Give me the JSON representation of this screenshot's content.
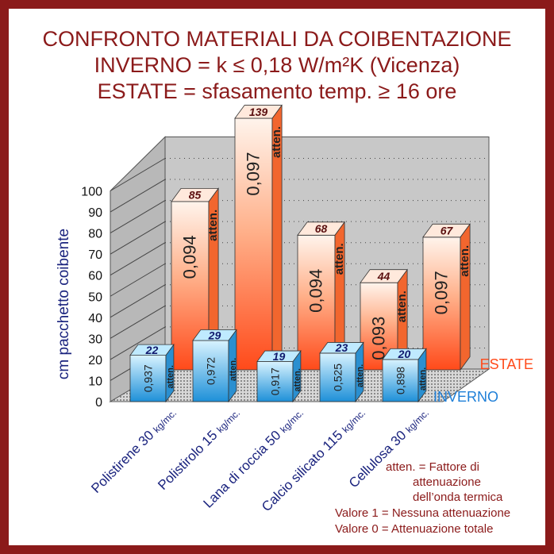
{
  "title_lines": [
    "CONFRONTO MATERIALI DA COIBENTAZIONE",
    "INVERNO = k ≤ 0,18 W/m²K (Vicenza)",
    "ESTATE = sfasamento temp. ≥ 16 ore"
  ],
  "notes": [
    "atten. = Fattore di",
    "attenuazione",
    "dell’onda termica",
    "Valore 1 = Nessuna attenuazione",
    "Valore 0 = Attenuazione totale"
  ],
  "colors": {
    "border": "#8b1a1a",
    "estate": "#ff5a2a",
    "inverno": "#1e90d8",
    "title": "#8b1a1a",
    "axis_label": "#1a237e"
  },
  "chart_data": {
    "type": "bar",
    "ylabel": "cm pacchetto coibente",
    "ylim": [
      0,
      100
    ],
    "yticks": [
      "0",
      "10",
      "20",
      "30",
      "40",
      "50",
      "60",
      "70",
      "80",
      "90",
      "100"
    ],
    "categories": [
      "Polistirene 30 kg/mc.",
      "Polistirolo 15 kg/mc.",
      "Lana di roccia 50 kg/mc.",
      "Calcio silicato 115 kg/mc.",
      "Cellulosa 30 kg/mc."
    ],
    "category_parts": [
      {
        "main": "Polistirene 30 ",
        "sub": "kg/mc."
      },
      {
        "main": "Polistirolo 15 ",
        "sub": "kg/mc."
      },
      {
        "main": "Lana di roccia 50 ",
        "sub": "kg/mc."
      },
      {
        "main": "Calcio silicato 115 ",
        "sub": "kg/mc."
      },
      {
        "main": "Cellulosa 30 ",
        "sub": "kg/mc."
      }
    ],
    "atten_label": "atten.",
    "series": [
      {
        "name": "ESTATE",
        "values": [
          85,
          139,
          68,
          44,
          67
        ],
        "value_labels": [
          "85",
          "139",
          "68",
          "44",
          "67"
        ],
        "atten": [
          "0,094",
          "0,097",
          "0,094",
          "0,093",
          "0,097"
        ]
      },
      {
        "name": "INVERNO",
        "values": [
          22,
          29,
          19,
          23,
          20
        ],
        "value_labels": [
          "22",
          "29",
          "19",
          "23",
          "20"
        ],
        "atten": [
          "0,937",
          "0,972",
          "0,917",
          "0,525",
          "0,898"
        ]
      }
    ],
    "grid": true
  }
}
